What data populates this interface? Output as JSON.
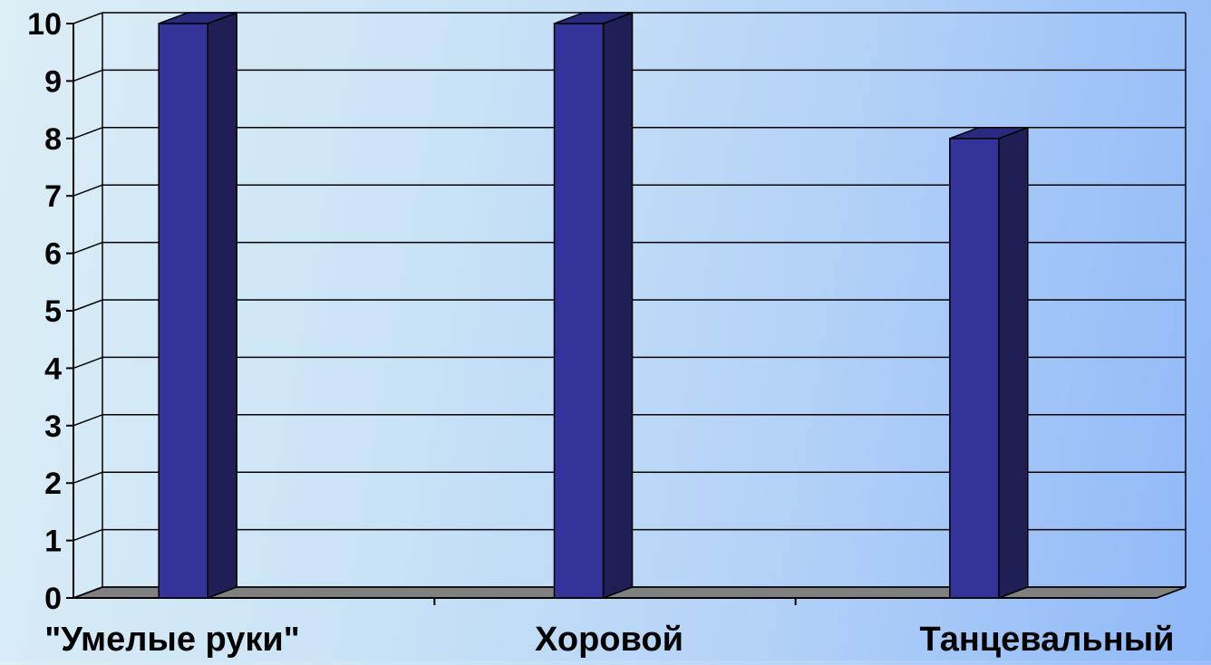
{
  "chart_data": {
    "type": "bar",
    "categories": [
      "\"Умелые руки\"",
      "Хоровой",
      "Танцевальный"
    ],
    "series": [
      {
        "values": [
          10,
          10,
          8
        ]
      }
    ],
    "title": "",
    "xlabel": "",
    "ylabel": "",
    "ylim": [
      0,
      10
    ],
    "y_ticks": [
      0,
      1,
      2,
      3,
      4,
      5,
      6,
      7,
      8,
      9,
      10
    ],
    "grid": true,
    "legend": "none",
    "three_d": true,
    "colors": {
      "bar_front": "#333399",
      "bar_side": "#1f1f56",
      "bar_top": "#2a2a80",
      "floor": "#808080",
      "gridline": "#000000"
    }
  }
}
